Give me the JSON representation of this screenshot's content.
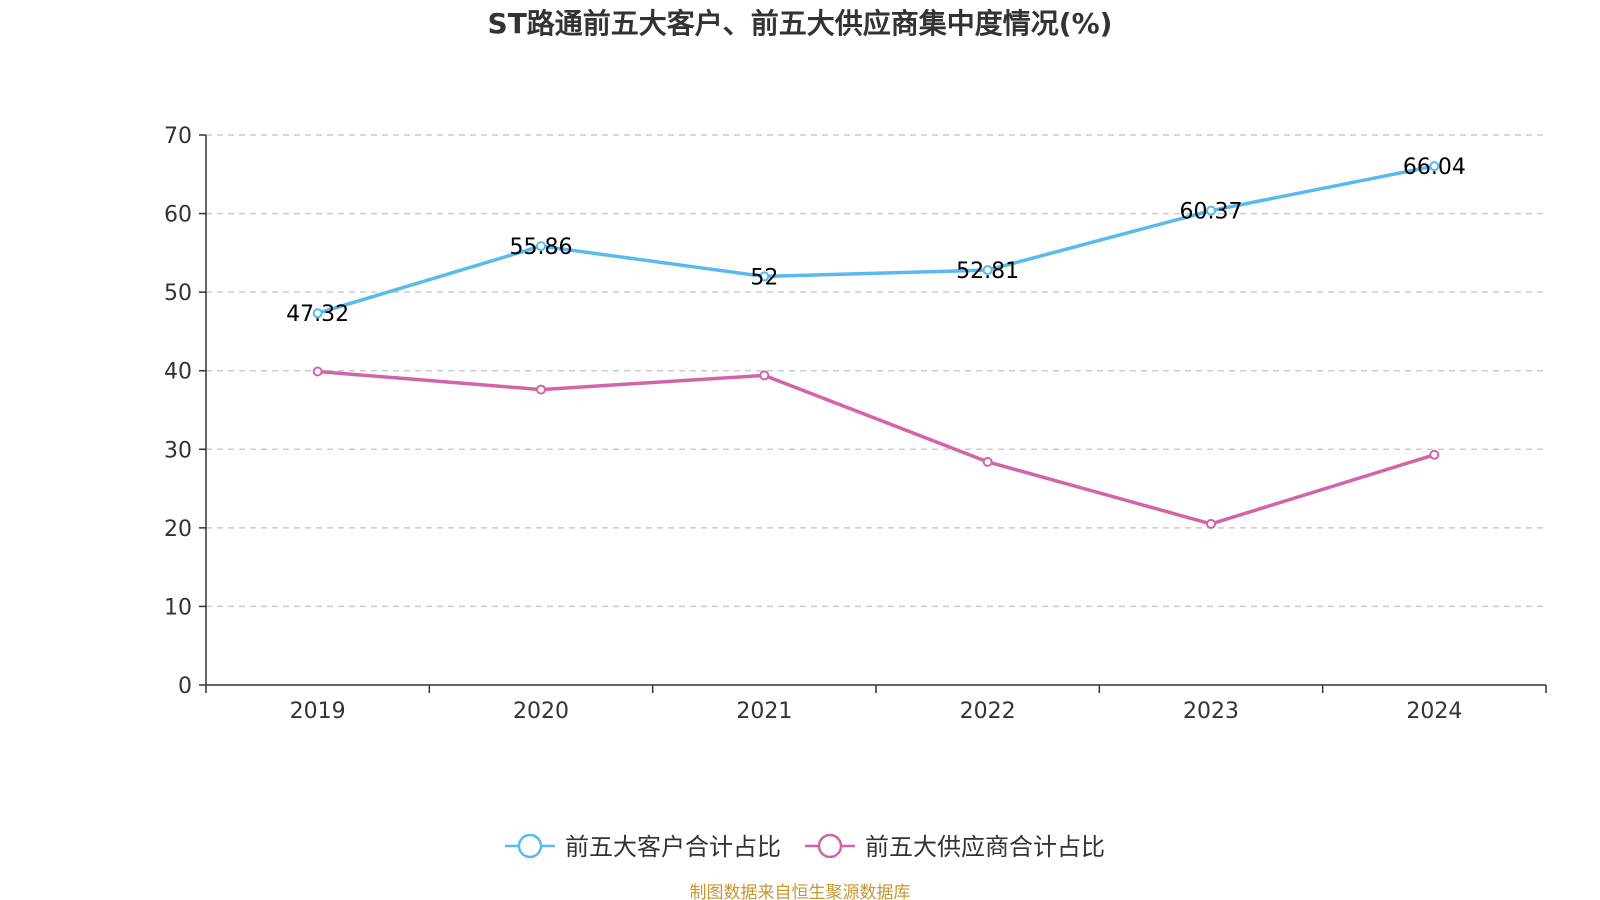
{
  "chart_data": {
    "type": "line",
    "title": "ST路通前五大客户、前五大供应商集中度情况(%)",
    "categories": [
      "2019",
      "2020",
      "2021",
      "2022",
      "2023",
      "2024"
    ],
    "ylim": [
      0,
      70
    ],
    "yticks": [
      0,
      10,
      20,
      30,
      40,
      50,
      60,
      70
    ],
    "grid": true,
    "legend_position": "bottom",
    "series": [
      {
        "name": "前五大客户合计占比",
        "color": "#5ab9ed",
        "values": [
          47.32,
          55.86,
          52,
          52.81,
          60.37,
          66.04
        ],
        "labels": [
          "47.32",
          "55.86",
          "52",
          "52.81",
          "60.37",
          "66.04"
        ]
      },
      {
        "name": "前五大供应商合计占比",
        "color": "#d364a8",
        "values": [
          39.9,
          37.6,
          39.4,
          28.4,
          20.5,
          29.3
        ],
        "labels": []
      }
    ]
  },
  "source": "制图数据来自恒生聚源数据库"
}
